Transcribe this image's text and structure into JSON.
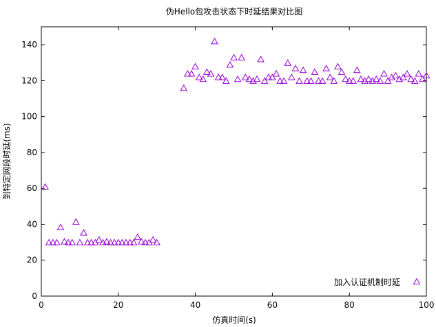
{
  "chart_data": {
    "type": "scatter",
    "title": "伪Hello包攻击状态下时延结果对比图",
    "xlabel": "仿真时间(s)",
    "ylabel": "到特定网段时延(ms)",
    "xlim": [
      0,
      100
    ],
    "ylim": [
      0,
      150
    ],
    "xticks": [
      0,
      20,
      40,
      60,
      80,
      100
    ],
    "yticks": [
      0,
      20,
      40,
      60,
      80,
      100,
      120,
      140
    ],
    "grid": false,
    "legend_position": "bottom-right",
    "series": [
      {
        "name": "加入认证机制时延",
        "marker": "triangle",
        "color": "#9400d3",
        "x": [
          1,
          2,
          3,
          4,
          5,
          6,
          7,
          8,
          9,
          10,
          11,
          12,
          13,
          14,
          15,
          16,
          17,
          18,
          19,
          20,
          21,
          22,
          23,
          24,
          25,
          26,
          27,
          28,
          29,
          30,
          37,
          38,
          39,
          40,
          41,
          42,
          43,
          44,
          45,
          46,
          47,
          48,
          49,
          50,
          51,
          52,
          53,
          54,
          55,
          56,
          57,
          58,
          59,
          60,
          61,
          62,
          63,
          64,
          65,
          66,
          67,
          68,
          69,
          70,
          71,
          72,
          73,
          74,
          75,
          76,
          77,
          78,
          79,
          80,
          81,
          82,
          83,
          84,
          85,
          86,
          87,
          88,
          89,
          90,
          91,
          92,
          93,
          94,
          95,
          96,
          97,
          98,
          99,
          100
        ],
        "y": [
          61,
          30,
          30,
          30,
          38.5,
          30.5,
          30,
          30,
          41.5,
          30,
          35.5,
          30,
          30,
          30,
          31.5,
          30,
          30.5,
          30,
          30,
          30,
          30,
          30,
          30,
          30,
          33,
          30.5,
          30,
          30,
          31.5,
          30,
          116,
          124,
          124,
          128,
          122,
          121,
          125,
          124,
          142,
          122,
          122,
          120,
          129,
          133,
          121,
          133,
          122,
          121,
          120,
          121,
          132,
          120,
          122,
          122,
          124,
          120,
          120,
          130,
          122,
          127,
          120,
          126,
          120,
          120,
          125,
          120,
          120,
          127,
          122,
          120,
          128,
          125,
          121,
          120,
          120,
          126,
          121,
          120,
          121,
          120,
          121,
          120,
          124,
          120,
          122,
          123,
          121,
          122,
          124,
          121,
          120,
          124,
          121,
          123
        ]
      }
    ]
  }
}
